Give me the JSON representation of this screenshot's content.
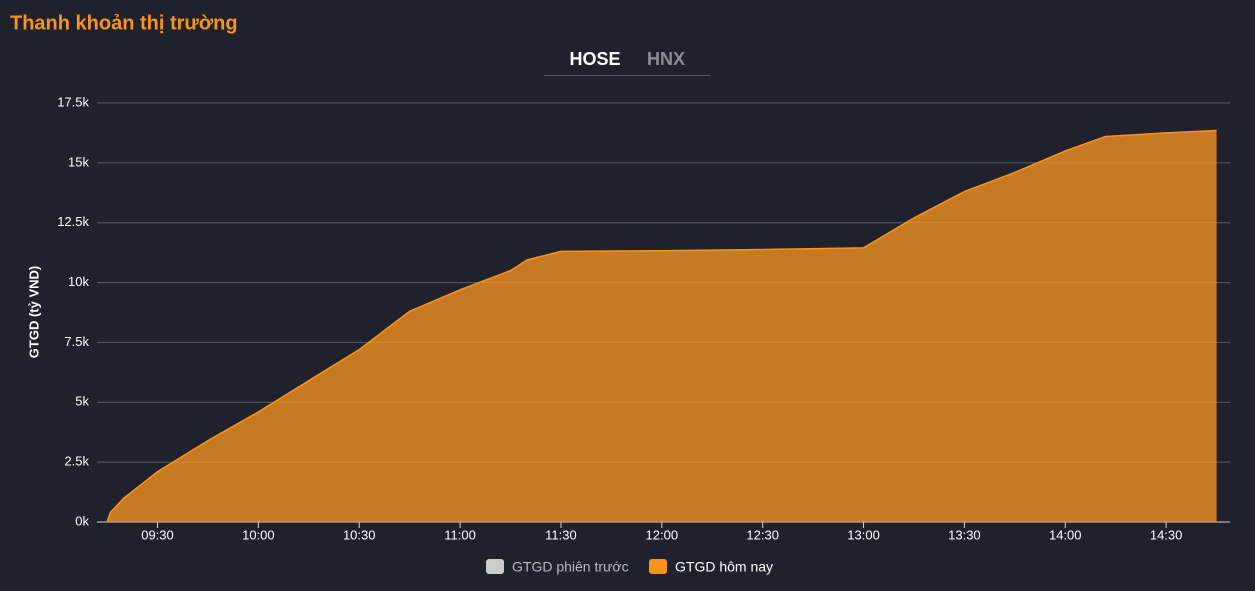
{
  "page": {
    "title": "Thanh khoản thị trường",
    "tabs": [
      "HOSE",
      "HNX"
    ],
    "active_tab": 0
  },
  "chart_data": {
    "type": "area",
    "y_label": "GTGD (tỷ VND)",
    "x": [
      "09:15",
      "09:16",
      "09:20",
      "09:30",
      "09:45",
      "10:00",
      "10:15",
      "10:30",
      "10:45",
      "11:00",
      "11:15",
      "11:20",
      "11:30",
      "12:00",
      "12:30",
      "13:00",
      "13:15",
      "13:30",
      "13:45",
      "14:00",
      "14:12",
      "14:30",
      "14:45"
    ],
    "series": [
      {
        "name": "GTGD phiên trước",
        "color": "#cccccc",
        "visible": false
      },
      {
        "name": "GTGD hôm nay",
        "color": "#f7941d",
        "visible": true,
        "values": [
          0,
          400,
          1000,
          2100,
          3400,
          4600,
          5900,
          7200,
          8800,
          9700,
          10500,
          10950,
          11300,
          11330,
          11380,
          11450,
          12700,
          13800,
          14600,
          15500,
          16100,
          16250,
          16350
        ]
      }
    ],
    "xlim": [
      "09:12",
      "14:49"
    ],
    "xticks": [
      "09:30",
      "10:00",
      "10:30",
      "11:00",
      "11:30",
      "12:00",
      "12:30",
      "13:00",
      "13:30",
      "14:00",
      "14:30"
    ],
    "ylim": [
      0,
      17500
    ],
    "yticks": [
      0,
      {
        "value": 2500,
        "label": "2.5k"
      },
      {
        "value": 5000,
        "label": "5k"
      },
      {
        "value": 7500,
        "label": "7.5k"
      },
      {
        "value": 10000,
        "label": "10k"
      },
      {
        "value": 12500,
        "label": "12.5k"
      },
      {
        "value": 15000,
        "label": "15k"
      },
      {
        "value": 17500,
        "label": "17.5k"
      }
    ],
    "zero_label": "0k",
    "grid": true
  }
}
